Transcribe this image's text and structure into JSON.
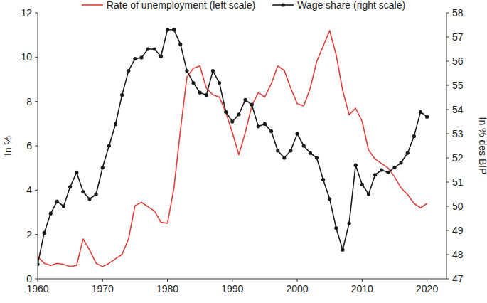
{
  "chart_data": {
    "type": "line",
    "y_label": "In %",
    "y2_label": "In % des BIP",
    "legend": "top",
    "grid": false,
    "x": [
      1960,
      1961,
      1962,
      1963,
      1964,
      1965,
      1966,
      1967,
      1968,
      1969,
      1970,
      1971,
      1972,
      1973,
      1974,
      1975,
      1976,
      1977,
      1978,
      1979,
      1980,
      1981,
      1982,
      1983,
      1984,
      1985,
      1986,
      1987,
      1988,
      1989,
      1990,
      1991,
      1992,
      1993,
      1994,
      1995,
      1996,
      1997,
      1998,
      1999,
      2000,
      2001,
      2002,
      2003,
      2004,
      2005,
      2006,
      2007,
      2008,
      2009,
      2010,
      2011,
      2012,
      2013,
      2014,
      2015,
      2016,
      2017,
      2018,
      2019,
      2020
    ],
    "xlim": [
      1960,
      2023
    ],
    "xticks": [
      1960,
      1970,
      1980,
      1990,
      2000,
      2010,
      2020
    ],
    "ylim": [
      0,
      12
    ],
    "yticks": [
      0,
      2,
      4,
      6,
      8,
      10,
      12
    ],
    "y2lim": [
      47,
      58
    ],
    "y2ticks": [
      47,
      48,
      49,
      50,
      51,
      52,
      53,
      54,
      55,
      56,
      57,
      58
    ],
    "series": [
      {
        "name": "Rate of unemployment (left scale)",
        "color": "#e0403a",
        "marker": "none",
        "line_style": "solid",
        "values": [
          1.0,
          0.7,
          0.6,
          0.7,
          0.65,
          0.55,
          0.6,
          1.8,
          1.3,
          0.7,
          0.55,
          0.7,
          0.9,
          1.1,
          1.8,
          3.3,
          3.45,
          3.25,
          3.05,
          2.55,
          2.5,
          4.1,
          6.7,
          9.1,
          9.5,
          9.6,
          8.6,
          8.3,
          8.2,
          7.5,
          6.6,
          5.6,
          6.6,
          7.8,
          8.4,
          8.2,
          8.8,
          9.6,
          9.4,
          8.6,
          7.9,
          7.8,
          8.6,
          9.8,
          10.5,
          11.2,
          10.1,
          8.5,
          7.4,
          7.7,
          7.1,
          5.8,
          5.4,
          5.2,
          5.0,
          4.6,
          4.1,
          3.8,
          3.4,
          3.2,
          3.4
        ]
      },
      {
        "name": "Wage share (right scale)",
        "color": "#1a1a1a",
        "marker": "circle",
        "line_style": "solid",
        "axis": "y2",
        "values": [
          47.6,
          48.9,
          49.7,
          50.2,
          50.0,
          50.8,
          51.4,
          50.6,
          50.3,
          50.5,
          51.6,
          52.5,
          53.4,
          54.6,
          55.6,
          56.1,
          56.15,
          56.5,
          56.5,
          56.2,
          57.3,
          57.3,
          56.7,
          55.6,
          55.1,
          54.7,
          54.6,
          55.6,
          55.1,
          53.9,
          53.5,
          53.8,
          54.4,
          54.2,
          53.3,
          53.4,
          53.1,
          52.3,
          52.0,
          52.3,
          53.0,
          52.5,
          52.2,
          52.0,
          51.1,
          50.3,
          49.1,
          48.2,
          49.3,
          51.7,
          50.9,
          50.5,
          51.3,
          51.5,
          51.4,
          51.6,
          51.8,
          52.2,
          52.9,
          53.9,
          53.7
        ]
      }
    ]
  }
}
